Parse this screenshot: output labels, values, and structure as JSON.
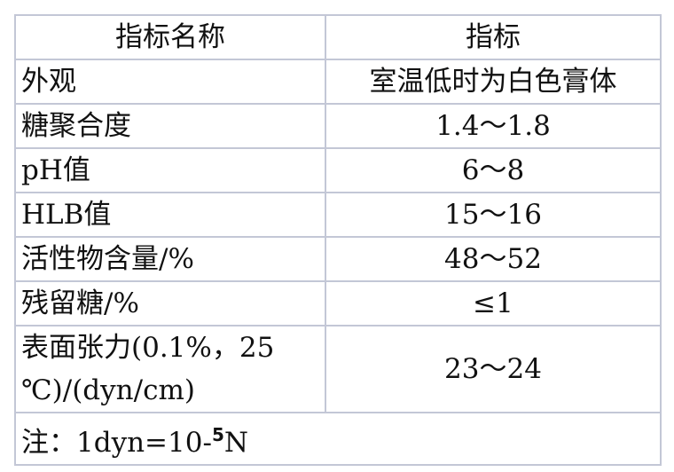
{
  "table": {
    "headers": [
      "指标名称",
      "指标"
    ],
    "rows": [
      {
        "name": "外观",
        "value": "室温低时为白色膏体"
      },
      {
        "name": "糖聚合度",
        "value": "1.4～1.8"
      },
      {
        "name": "pH值",
        "value": "6～8"
      },
      {
        "name": "HLB值",
        "value": "15～16"
      },
      {
        "name": "活性物含量/%",
        "value": "48～52"
      },
      {
        "name": "残留糖/%",
        "value": "≤1"
      },
      {
        "name": "表面张力(0.1%，25 ℃)/(dyn/cm)",
        "value": "23～24"
      }
    ],
    "note": {
      "prefix": "注：1dyn=10-",
      "exponent": "5",
      "suffix": "N"
    }
  },
  "colors": {
    "border": "#c3c7d6",
    "text": "#111111"
  }
}
